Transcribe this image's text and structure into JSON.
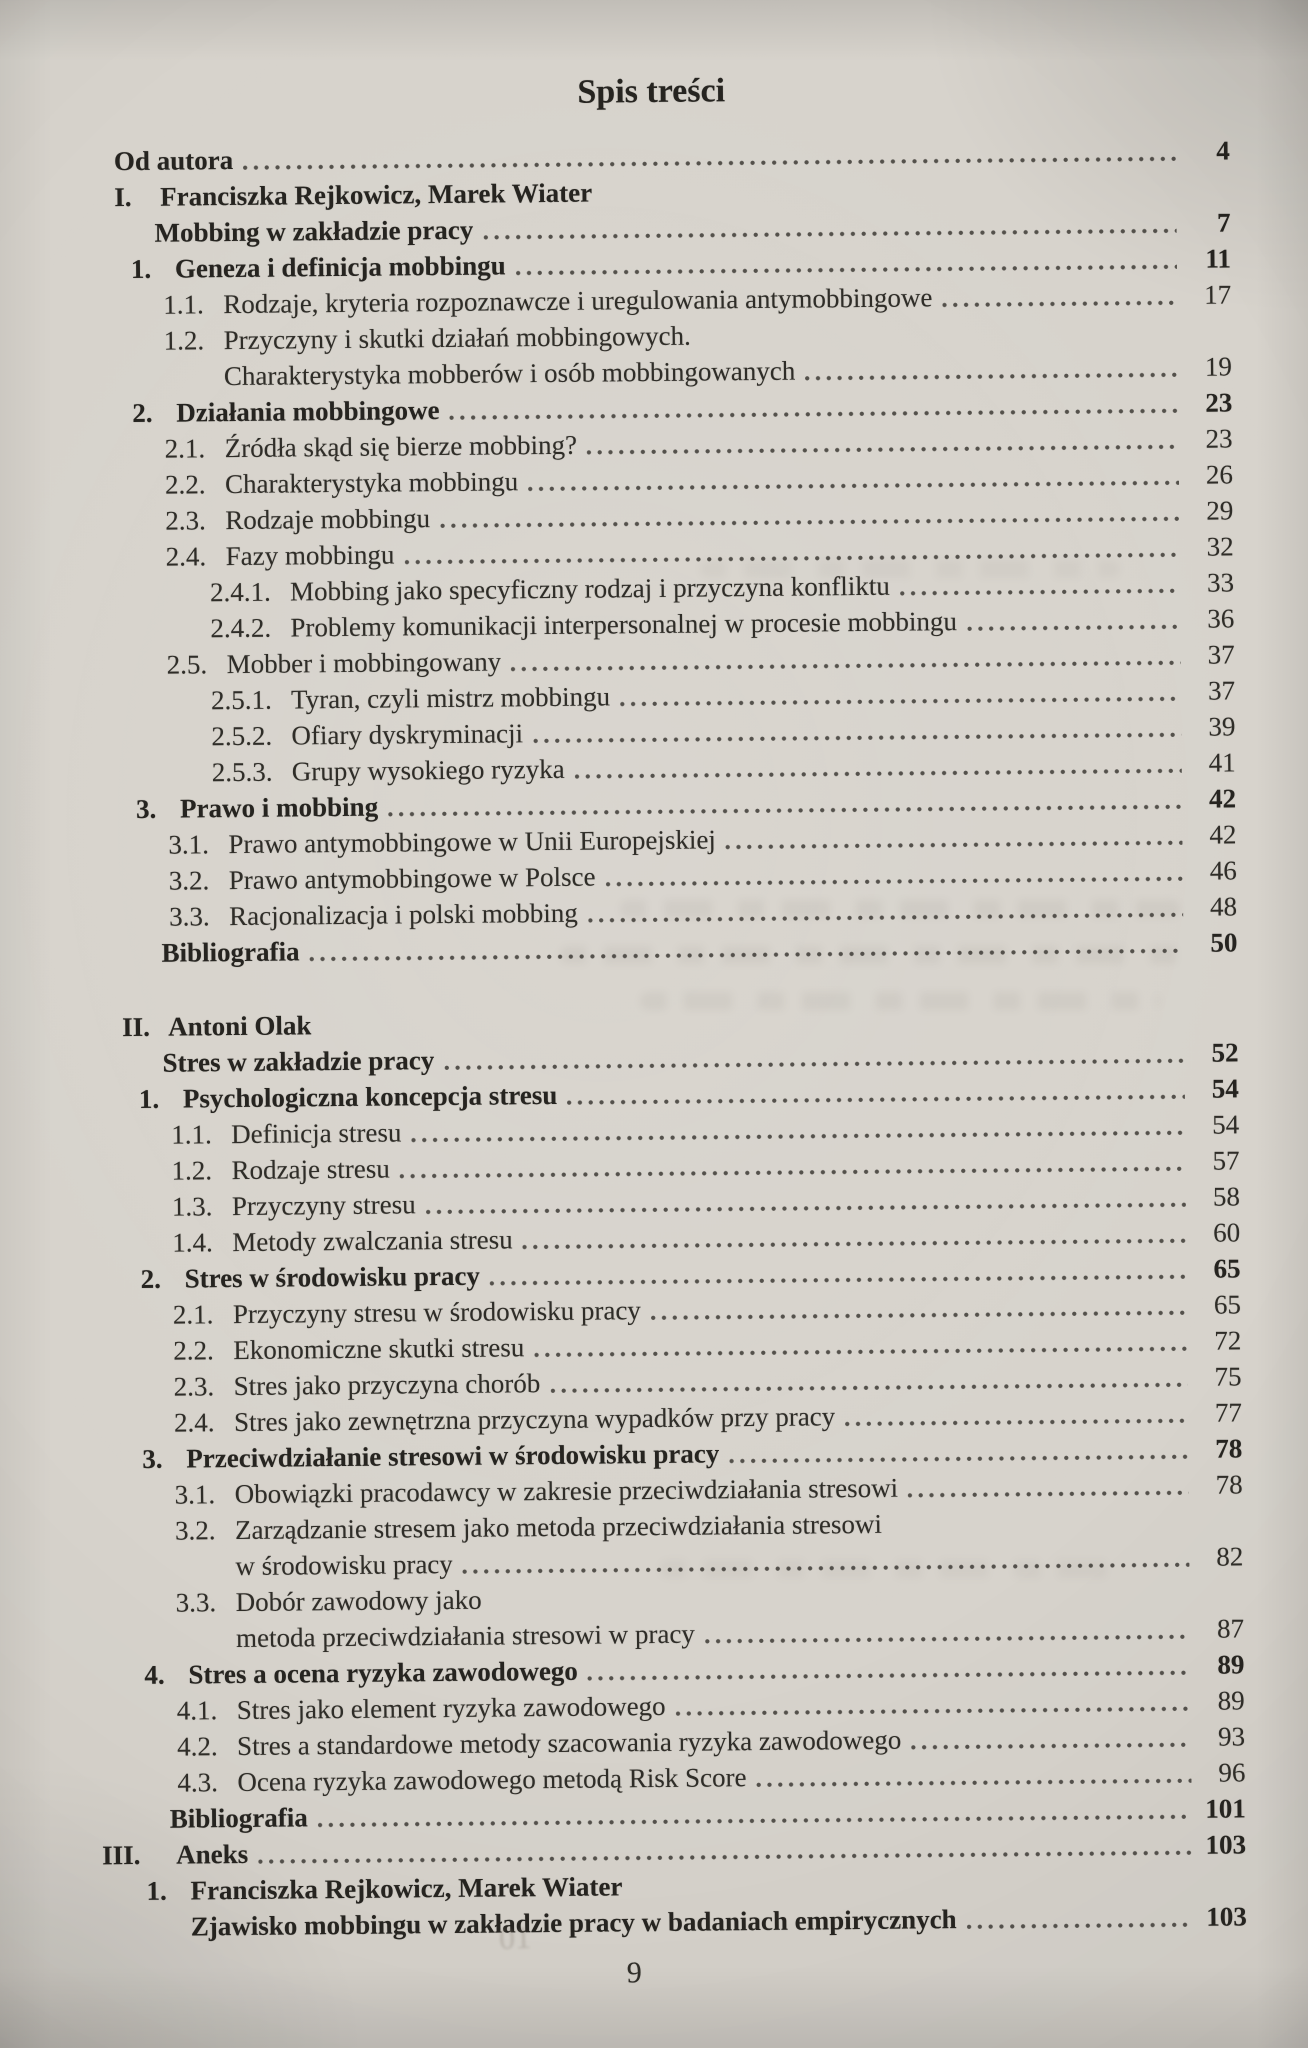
{
  "page_title": "Spis treści",
  "footer": {
    "page_number": "9",
    "ghost_artifact": "01"
  },
  "colors": {
    "paper": "#d7d3cc",
    "ink": "#2f2d28",
    "ink_bold": "#262420",
    "dots": "#45423d"
  },
  "toc": {
    "entries": [
      {
        "num": "",
        "text": "Od autora",
        "page": "4",
        "level": "top",
        "bold": true
      },
      {
        "num": "I.",
        "text": "Franciszka Rejkowicz, Marek Wiater",
        "page": "",
        "level": "top",
        "bold": true
      },
      {
        "num": "",
        "text": "Mobbing w zakładzie pracy",
        "page": "7",
        "level": "chapter",
        "bold": true
      },
      {
        "num": "1.",
        "text": "Geneza i definicja mobbingu",
        "page": "11",
        "level": "n1",
        "bold": true
      },
      {
        "num": "1.1.",
        "text": "Rodzaje, kryteria rozpoznawcze i uregulowania antymobbingowe",
        "page": "17",
        "level": "n2",
        "bold": false
      },
      {
        "num": "1.2.",
        "text": "Przyczyny i skutki działań mobbingowych.",
        "page": "",
        "level": "n2",
        "bold": false
      },
      {
        "num": "",
        "text": "Charakterystyka mobberów i osób mobbingowanych",
        "page": "19",
        "level": "cont2",
        "bold": false
      },
      {
        "num": "2.",
        "text": "Działania mobbingowe",
        "page": "23",
        "level": "n1",
        "bold": true
      },
      {
        "num": "2.1.",
        "text": "Źródła skąd się bierze mobbing?",
        "page": "23",
        "level": "n2",
        "bold": false
      },
      {
        "num": "2.2.",
        "text": "Charakterystyka mobbingu",
        "page": "26",
        "level": "n2",
        "bold": false
      },
      {
        "num": "2.3.",
        "text": "Rodzaje mobbingu",
        "page": "29",
        "level": "n2",
        "bold": false
      },
      {
        "num": "2.4.",
        "text": "Fazy mobbingu",
        "page": "32",
        "level": "n2",
        "bold": false
      },
      {
        "num": "2.4.1.",
        "text": "Mobbing jako specyficzny rodzaj i przyczyna konfliktu",
        "page": "33",
        "level": "n3",
        "bold": false
      },
      {
        "num": "2.4.2.",
        "text": "Problemy komunikacji interpersonalnej w procesie mobbingu",
        "page": "36",
        "level": "n3",
        "bold": false
      },
      {
        "num": "2.5.",
        "text": "Mobber i mobbingowany",
        "page": "37",
        "level": "n2",
        "bold": false
      },
      {
        "num": "2.5.1.",
        "text": "Tyran, czyli mistrz mobbingu",
        "page": "37",
        "level": "n3",
        "bold": false
      },
      {
        "num": "2.5.2.",
        "text": "Ofiary dyskryminacji",
        "page": "39",
        "level": "n3",
        "bold": false
      },
      {
        "num": "2.5.3.",
        "text": "Grupy wysokiego ryzyka",
        "page": "41",
        "level": "n3",
        "bold": false
      },
      {
        "num": "3.",
        "text": "Prawo i mobbing",
        "page": "42",
        "level": "n1",
        "bold": true
      },
      {
        "num": "3.1.",
        "text": "Prawo antymobbingowe w Unii Europejskiej",
        "page": "42",
        "level": "n2",
        "bold": false
      },
      {
        "num": "3.2.",
        "text": "Prawo antymobbingowe w Polsce",
        "page": "46",
        "level": "n2",
        "bold": false
      },
      {
        "num": "3.3.",
        "text": "Racjonalizacja i polski mobbing",
        "page": "48",
        "level": "n2",
        "bold": false
      },
      {
        "num": "",
        "text": "Bibliografia",
        "page": "50",
        "level": "chapter",
        "bold": true
      },
      {
        "num": "II.",
        "text": "Antoni Olak",
        "page": "",
        "level": "top",
        "bold": true,
        "gap_before": true
      },
      {
        "num": "",
        "text": "Stres w zakładzie pracy",
        "page": "52",
        "level": "chapter",
        "bold": true
      },
      {
        "num": "1.",
        "text": "Psychologiczna koncepcja stresu",
        "page": "54",
        "level": "n1",
        "bold": true
      },
      {
        "num": "1.1.",
        "text": "Definicja stresu",
        "page": "54",
        "level": "n2",
        "bold": false
      },
      {
        "num": "1.2.",
        "text": "Rodzaje stresu",
        "page": "57",
        "level": "n2",
        "bold": false
      },
      {
        "num": "1.3.",
        "text": "Przyczyny stresu",
        "page": "58",
        "level": "n2",
        "bold": false
      },
      {
        "num": "1.4.",
        "text": "Metody zwalczania stresu",
        "page": "60",
        "level": "n2",
        "bold": false
      },
      {
        "num": "2.",
        "text": "Stres w środowisku pracy",
        "page": "65",
        "level": "n1",
        "bold": true
      },
      {
        "num": "2.1.",
        "text": "Przyczyny stresu w środowisku pracy",
        "page": "65",
        "level": "n2",
        "bold": false
      },
      {
        "num": "2.2.",
        "text": "Ekonomiczne skutki stresu",
        "page": "72",
        "level": "n2",
        "bold": false
      },
      {
        "num": "2.3.",
        "text": "Stres jako przyczyna chorób",
        "page": "75",
        "level": "n2",
        "bold": false
      },
      {
        "num": "2.4.",
        "text": "Stres jako zewnętrzna przyczyna wypadków przy pracy",
        "page": "77",
        "level": "n2",
        "bold": false
      },
      {
        "num": "3.",
        "text": "Przeciwdziałanie stresowi w środowisku pracy",
        "page": "78",
        "level": "n1",
        "bold": true
      },
      {
        "num": "3.1.",
        "text": "Obowiązki pracodawcy w zakresie przeciwdziałania stresowi",
        "page": "78",
        "level": "n2",
        "bold": false
      },
      {
        "num": "3.2.",
        "text": "Zarządzanie stresem jako metoda przeciwdziałania stresowi",
        "page": "",
        "level": "n2",
        "bold": false
      },
      {
        "num": "",
        "text": "w środowisku pracy",
        "page": "82",
        "level": "cont2",
        "bold": false
      },
      {
        "num": "3.3.",
        "text": "Dobór zawodowy jako",
        "page": "",
        "level": "n2",
        "bold": false
      },
      {
        "num": "",
        "text": "metoda przeciwdziałania stresowi w pracy",
        "page": "87",
        "level": "cont2",
        "bold": false
      },
      {
        "num": "4.",
        "text": "Stres a ocena ryzyka zawodowego",
        "page": "89",
        "level": "n1",
        "bold": true
      },
      {
        "num": "4.1.",
        "text": "Stres jako element ryzyka zawodowego",
        "page": "89",
        "level": "n2",
        "bold": false
      },
      {
        "num": "4.2.",
        "text": "Stres a standardowe metody szacowania ryzyka zawodowego",
        "page": "93",
        "level": "n2",
        "bold": false
      },
      {
        "num": "4.3.",
        "text": "Ocena ryzyka zawodowego metodą Risk Score",
        "page": "96",
        "level": "n2",
        "bold": false
      },
      {
        "num": "",
        "text": "Bibliografia",
        "page": "101",
        "level": "chapter",
        "bold": true
      },
      {
        "num": "III.",
        "text": "Aneks",
        "page": "103",
        "level": "top",
        "bold": true
      },
      {
        "num": "1.",
        "text": "Franciszka Rejkowicz, Marek Wiater",
        "page": "",
        "level": "n1",
        "bold": true
      },
      {
        "num": "",
        "text": "Zjawisko mobbingu w zakładzie pracy w badaniach empirycznych",
        "page": "103",
        "level": "cont1",
        "bold": true
      }
    ]
  }
}
